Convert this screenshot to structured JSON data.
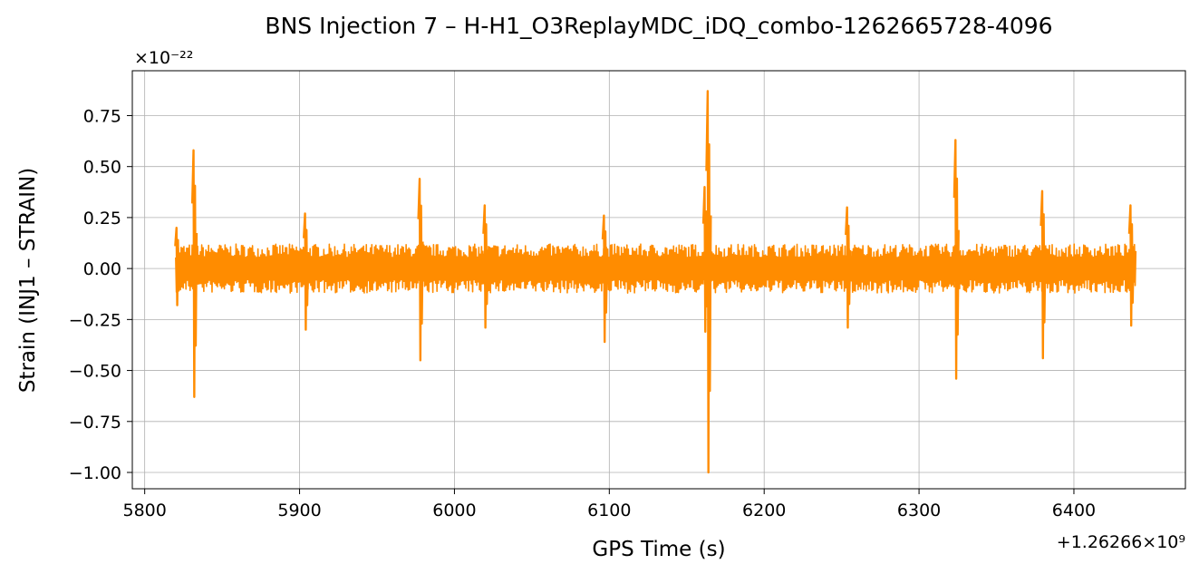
{
  "chart_data": {
    "type": "line",
    "title": "BNS Injection 7 – H-H1_O3ReplayMDC_iDQ_combo-1262665728-4096",
    "xlabel": "GPS Time (s)",
    "ylabel": "Strain (INJ1 – STRAIN)",
    "x_offset_label": "+1.26266×10⁹",
    "y_scale_label": "×10⁻²²",
    "xlim": [
      5792,
      6472
    ],
    "ylim": [
      -1.08,
      0.97
    ],
    "x_ticks": [
      5800,
      5900,
      6000,
      6100,
      6200,
      6300,
      6400
    ],
    "x_tick_labels": [
      "5800",
      "5900",
      "6000",
      "6100",
      "6200",
      "6300",
      "6400"
    ],
    "y_ticks": [
      -1.0,
      -0.75,
      -0.5,
      -0.25,
      0.0,
      0.25,
      0.5,
      0.75
    ],
    "y_tick_labels": [
      "−1.00",
      "−0.75",
      "−0.50",
      "−0.25",
      "0.00",
      "0.25",
      "0.50",
      "0.75"
    ],
    "grid": true,
    "line_color": "#ff8c00",
    "series": [
      {
        "x_start": 5820,
        "x_end": 6440,
        "baseline_amplitude": 0.12,
        "spikes": [
          {
            "x": 5821,
            "max": 0.2,
            "min": -0.18
          },
          {
            "x": 5832,
            "max": 0.58,
            "min": -0.63
          },
          {
            "x": 5904,
            "max": 0.27,
            "min": -0.3
          },
          {
            "x": 5978,
            "max": 0.44,
            "min": -0.45
          },
          {
            "x": 6020,
            "max": 0.31,
            "min": -0.29
          },
          {
            "x": 6097,
            "max": 0.26,
            "min": -0.36
          },
          {
            "x": 6162,
            "max": 0.4,
            "min": -0.31
          },
          {
            "x": 6164,
            "max": 0.87,
            "min": -1.0
          },
          {
            "x": 6254,
            "max": 0.3,
            "min": -0.29
          },
          {
            "x": 6324,
            "max": 0.63,
            "min": -0.54
          },
          {
            "x": 6380,
            "max": 0.38,
            "min": -0.44
          },
          {
            "x": 6437,
            "max": 0.31,
            "min": -0.28
          }
        ]
      }
    ]
  }
}
